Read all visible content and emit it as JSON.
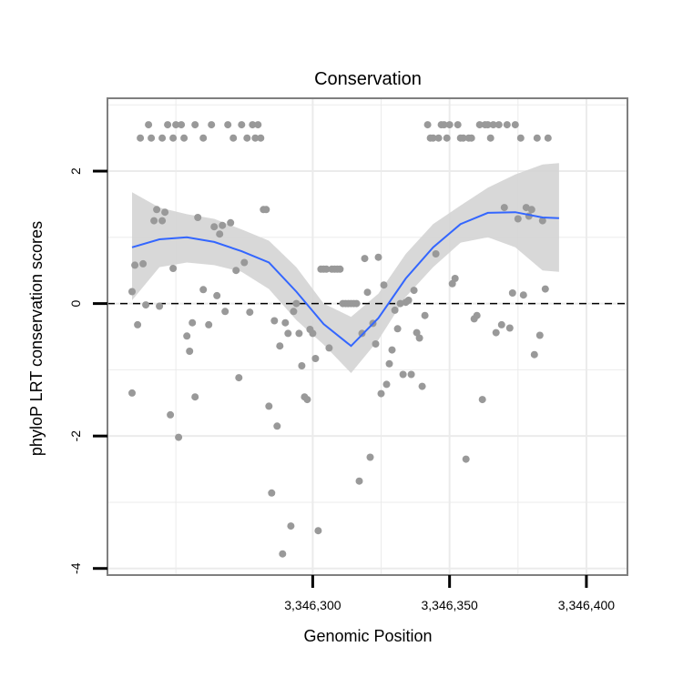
{
  "chart_data": {
    "type": "scatter",
    "title": "Conservation",
    "xlabel": "Genomic Position",
    "ylabel": "phyloP LRT conservation scores",
    "xlim": [
      3346225,
      3346415
    ],
    "ylim": [
      -4.1,
      3.1
    ],
    "x_ticks": [
      {
        "value": 3346300,
        "label": "3,346,300"
      },
      {
        "value": 3346350,
        "label": "3,346,350"
      },
      {
        "value": 3346400,
        "label": "3,346,400"
      }
    ],
    "y_ticks": [
      {
        "value": 2,
        "label": "2"
      },
      {
        "value": 0,
        "label": "0"
      },
      {
        "value": -2,
        "label": "-2"
      },
      {
        "value": -4,
        "label": "-4"
      }
    ],
    "grid": true,
    "reference_line": {
      "y": 0,
      "style": "dashed"
    },
    "colors": {
      "points": "#999999",
      "smooth": "#3366ff",
      "ribbon": "#d4d4d4",
      "grid": "#ebebeb",
      "panel_border": "#7f7f7f"
    },
    "series": [
      {
        "type": "scatter",
        "points": [
          [
            3346234,
            -1.35
          ],
          [
            3346234,
            0.18
          ],
          [
            3346235,
            0.58
          ],
          [
            3346236,
            -0.32
          ],
          [
            3346237,
            2.5
          ],
          [
            3346238,
            0.6
          ],
          [
            3346239,
            -0.02
          ],
          [
            3346240,
            2.7
          ],
          [
            3346241,
            2.5
          ],
          [
            3346242,
            1.25
          ],
          [
            3346243,
            1.42
          ],
          [
            3346244,
            -0.04
          ],
          [
            3346245,
            1.25
          ],
          [
            3346245,
            2.5
          ],
          [
            3346246,
            1.38
          ],
          [
            3346247,
            2.7
          ],
          [
            3346248,
            -1.68
          ],
          [
            3346249,
            2.5
          ],
          [
            3346249,
            0.53
          ],
          [
            3346250,
            2.7
          ],
          [
            3346251,
            -2.02
          ],
          [
            3346252,
            2.7
          ],
          [
            3346253,
            2.5
          ],
          [
            3346254,
            -0.49
          ],
          [
            3346255,
            -0.72
          ],
          [
            3346256,
            -0.29
          ],
          [
            3346257,
            2.7
          ],
          [
            3346257,
            -1.41
          ],
          [
            3346258,
            1.3
          ],
          [
            3346260,
            2.5
          ],
          [
            3346260,
            0.21
          ],
          [
            3346262,
            -0.32
          ],
          [
            3346263,
            2.7
          ],
          [
            3346264,
            1.16
          ],
          [
            3346265,
            0.12
          ],
          [
            3346266,
            1.05
          ],
          [
            3346267,
            1.18
          ],
          [
            3346268,
            -0.12
          ],
          [
            3346269,
            2.7
          ],
          [
            3346270,
            1.22
          ],
          [
            3346271,
            2.5
          ],
          [
            3346272,
            0.5
          ],
          [
            3346273,
            -1.12
          ],
          [
            3346274,
            2.7
          ],
          [
            3346275,
            0.62
          ],
          [
            3346276,
            2.5
          ],
          [
            3346277,
            -0.13
          ],
          [
            3346278,
            2.7
          ],
          [
            3346279,
            2.5
          ],
          [
            3346280,
            2.7
          ],
          [
            3346281,
            2.5
          ],
          [
            3346282,
            1.42
          ],
          [
            3346283,
            1.42
          ],
          [
            3346284,
            -1.55
          ],
          [
            3346285,
            -2.86
          ],
          [
            3346286,
            -0.26
          ],
          [
            3346287,
            -1.85
          ],
          [
            3346288,
            -0.64
          ],
          [
            3346289,
            -3.78
          ],
          [
            3346290,
            -0.29
          ],
          [
            3346291,
            -0.45
          ],
          [
            3346292,
            -3.36
          ],
          [
            3346293,
            -0.12
          ],
          [
            3346294,
            0.0
          ],
          [
            3346295,
            -0.45
          ],
          [
            3346296,
            -0.94
          ],
          [
            3346297,
            -1.41
          ],
          [
            3346298,
            -1.45
          ],
          [
            3346299,
            -0.39
          ],
          [
            3346300,
            -0.45
          ],
          [
            3346301,
            -0.83
          ],
          [
            3346302,
            -3.43
          ],
          [
            3346303,
            0.52
          ],
          [
            3346304,
            0.52
          ],
          [
            3346305,
            0.52
          ],
          [
            3346306,
            -0.67
          ],
          [
            3346307,
            0.52
          ],
          [
            3346308,
            0.52
          ],
          [
            3346309,
            0.52
          ],
          [
            3346310,
            0.52
          ],
          [
            3346311,
            0.0
          ],
          [
            3346312,
            0.0
          ],
          [
            3346313,
            0.0
          ],
          [
            3346314,
            0.0
          ],
          [
            3346315,
            0.0
          ],
          [
            3346316,
            0.0
          ],
          [
            3346317,
            -2.68
          ],
          [
            3346318,
            -0.45
          ],
          [
            3346319,
            0.68
          ],
          [
            3346320,
            0.17
          ],
          [
            3346321,
            -2.32
          ],
          [
            3346322,
            -0.3
          ],
          [
            3346323,
            -0.61
          ],
          [
            3346324,
            0.7
          ],
          [
            3346325,
            -1.36
          ],
          [
            3346326,
            0.28
          ],
          [
            3346327,
            -1.22
          ],
          [
            3346328,
            -0.91
          ],
          [
            3346329,
            -0.7
          ],
          [
            3346330,
            -0.1
          ],
          [
            3346331,
            -0.38
          ],
          [
            3346332,
            0.0
          ],
          [
            3346333,
            -1.07
          ],
          [
            3346334,
            0.02
          ],
          [
            3346335,
            0.05
          ],
          [
            3346336,
            -1.07
          ],
          [
            3346337,
            0.2
          ],
          [
            3346338,
            -0.44
          ],
          [
            3346339,
            -0.52
          ],
          [
            3346340,
            -1.25
          ],
          [
            3346341,
            -0.18
          ],
          [
            3346342,
            2.7
          ],
          [
            3346343,
            2.5
          ],
          [
            3346344,
            2.5
          ],
          [
            3346345,
            0.75
          ],
          [
            3346346,
            2.5
          ],
          [
            3346347,
            2.7
          ],
          [
            3346348,
            2.7
          ],
          [
            3346349,
            2.5
          ],
          [
            3346350,
            2.7
          ],
          [
            3346351,
            0.3
          ],
          [
            3346352,
            0.38
          ],
          [
            3346353,
            2.7
          ],
          [
            3346354,
            2.5
          ],
          [
            3346355,
            2.5
          ],
          [
            3346356,
            -2.35
          ],
          [
            3346357,
            2.5
          ],
          [
            3346358,
            2.5
          ],
          [
            3346359,
            -0.23
          ],
          [
            3346360,
            -0.18
          ],
          [
            3346361,
            2.7
          ],
          [
            3346362,
            -1.45
          ],
          [
            3346363,
            2.7
          ],
          [
            3346364,
            2.7
          ],
          [
            3346365,
            2.5
          ],
          [
            3346366,
            2.7
          ],
          [
            3346367,
            -0.44
          ],
          [
            3346368,
            2.7
          ],
          [
            3346369,
            -0.32
          ],
          [
            3346370,
            1.45
          ],
          [
            3346371,
            2.7
          ],
          [
            3346372,
            -0.37
          ],
          [
            3346373,
            0.16
          ],
          [
            3346374,
            2.7
          ],
          [
            3346375,
            1.28
          ],
          [
            3346376,
            2.5
          ],
          [
            3346377,
            0.13
          ],
          [
            3346378,
            1.45
          ],
          [
            3346379,
            1.32
          ],
          [
            3346380,
            1.42
          ],
          [
            3346381,
            -0.77
          ],
          [
            3346382,
            2.5
          ],
          [
            3346383,
            -0.48
          ],
          [
            3346384,
            1.25
          ],
          [
            3346385,
            0.22
          ],
          [
            3346386,
            2.5
          ]
        ]
      },
      {
        "type": "smooth",
        "x": [
          3346234,
          3346244,
          3346254,
          3346264,
          3346274,
          3346284,
          3346294,
          3346304,
          3346314,
          3346324,
          3346334,
          3346344,
          3346354,
          3346364,
          3346374,
          3346384,
          3346390
        ],
        "y": [
          0.85,
          0.97,
          1.0,
          0.93,
          0.79,
          0.62,
          0.18,
          -0.31,
          -0.64,
          -0.22,
          0.38,
          0.85,
          1.2,
          1.37,
          1.38,
          1.3,
          1.29
        ],
        "ymin": [
          0.05,
          0.55,
          0.62,
          0.58,
          0.48,
          0.22,
          -0.25,
          -0.62,
          -1.05,
          -0.55,
          0.1,
          0.55,
          0.92,
          1.0,
          0.85,
          0.5,
          0.48
        ],
        "ymax": [
          1.68,
          1.45,
          1.35,
          1.28,
          1.12,
          0.95,
          0.55,
          0.0,
          -0.2,
          0.15,
          0.75,
          1.2,
          1.48,
          1.75,
          1.95,
          2.1,
          2.12
        ]
      }
    ]
  }
}
